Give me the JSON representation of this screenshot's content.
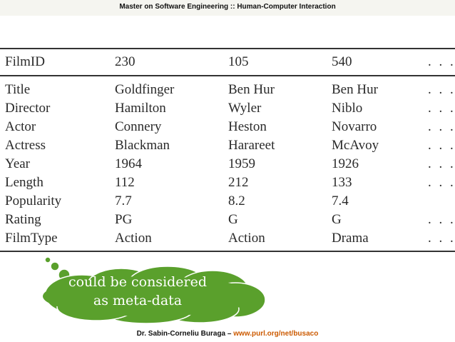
{
  "header": {
    "title": "Master on Software Engineering :: Human-Computer Interaction"
  },
  "table": {
    "head": [
      "FilmID",
      "230",
      "105",
      "540",
      ". . ."
    ],
    "rows": [
      [
        "Title",
        "Goldfinger",
        "Ben Hur",
        "Ben Hur",
        ". . ."
      ],
      [
        "Director",
        "Hamilton",
        "Wyler",
        "Niblo",
        ". . ."
      ],
      [
        "Actor",
        "Connery",
        "Heston",
        "Novarro",
        ". . ."
      ],
      [
        "Actress",
        "Blackman",
        "Harareet",
        "McAvoy",
        ". . ."
      ],
      [
        "Year",
        "1964",
        "1959",
        "1926",
        ". . ."
      ],
      [
        "Length",
        "112",
        "212",
        "133",
        ". . ."
      ],
      [
        "Popularity",
        "7.7",
        "8.2",
        "7.4",
        ""
      ],
      [
        "Rating",
        "PG",
        "G",
        "G",
        ". . ."
      ],
      [
        "FilmType",
        "Action",
        "Action",
        "Drama",
        ". . ."
      ]
    ]
  },
  "callout": {
    "line1": "could be considered",
    "line2": "as meta-data",
    "color": "#5aa02c"
  },
  "footer": {
    "author": "Dr. Sabin-Corneliu Buraga – ",
    "url": "www.purl.org/net/busaco"
  }
}
